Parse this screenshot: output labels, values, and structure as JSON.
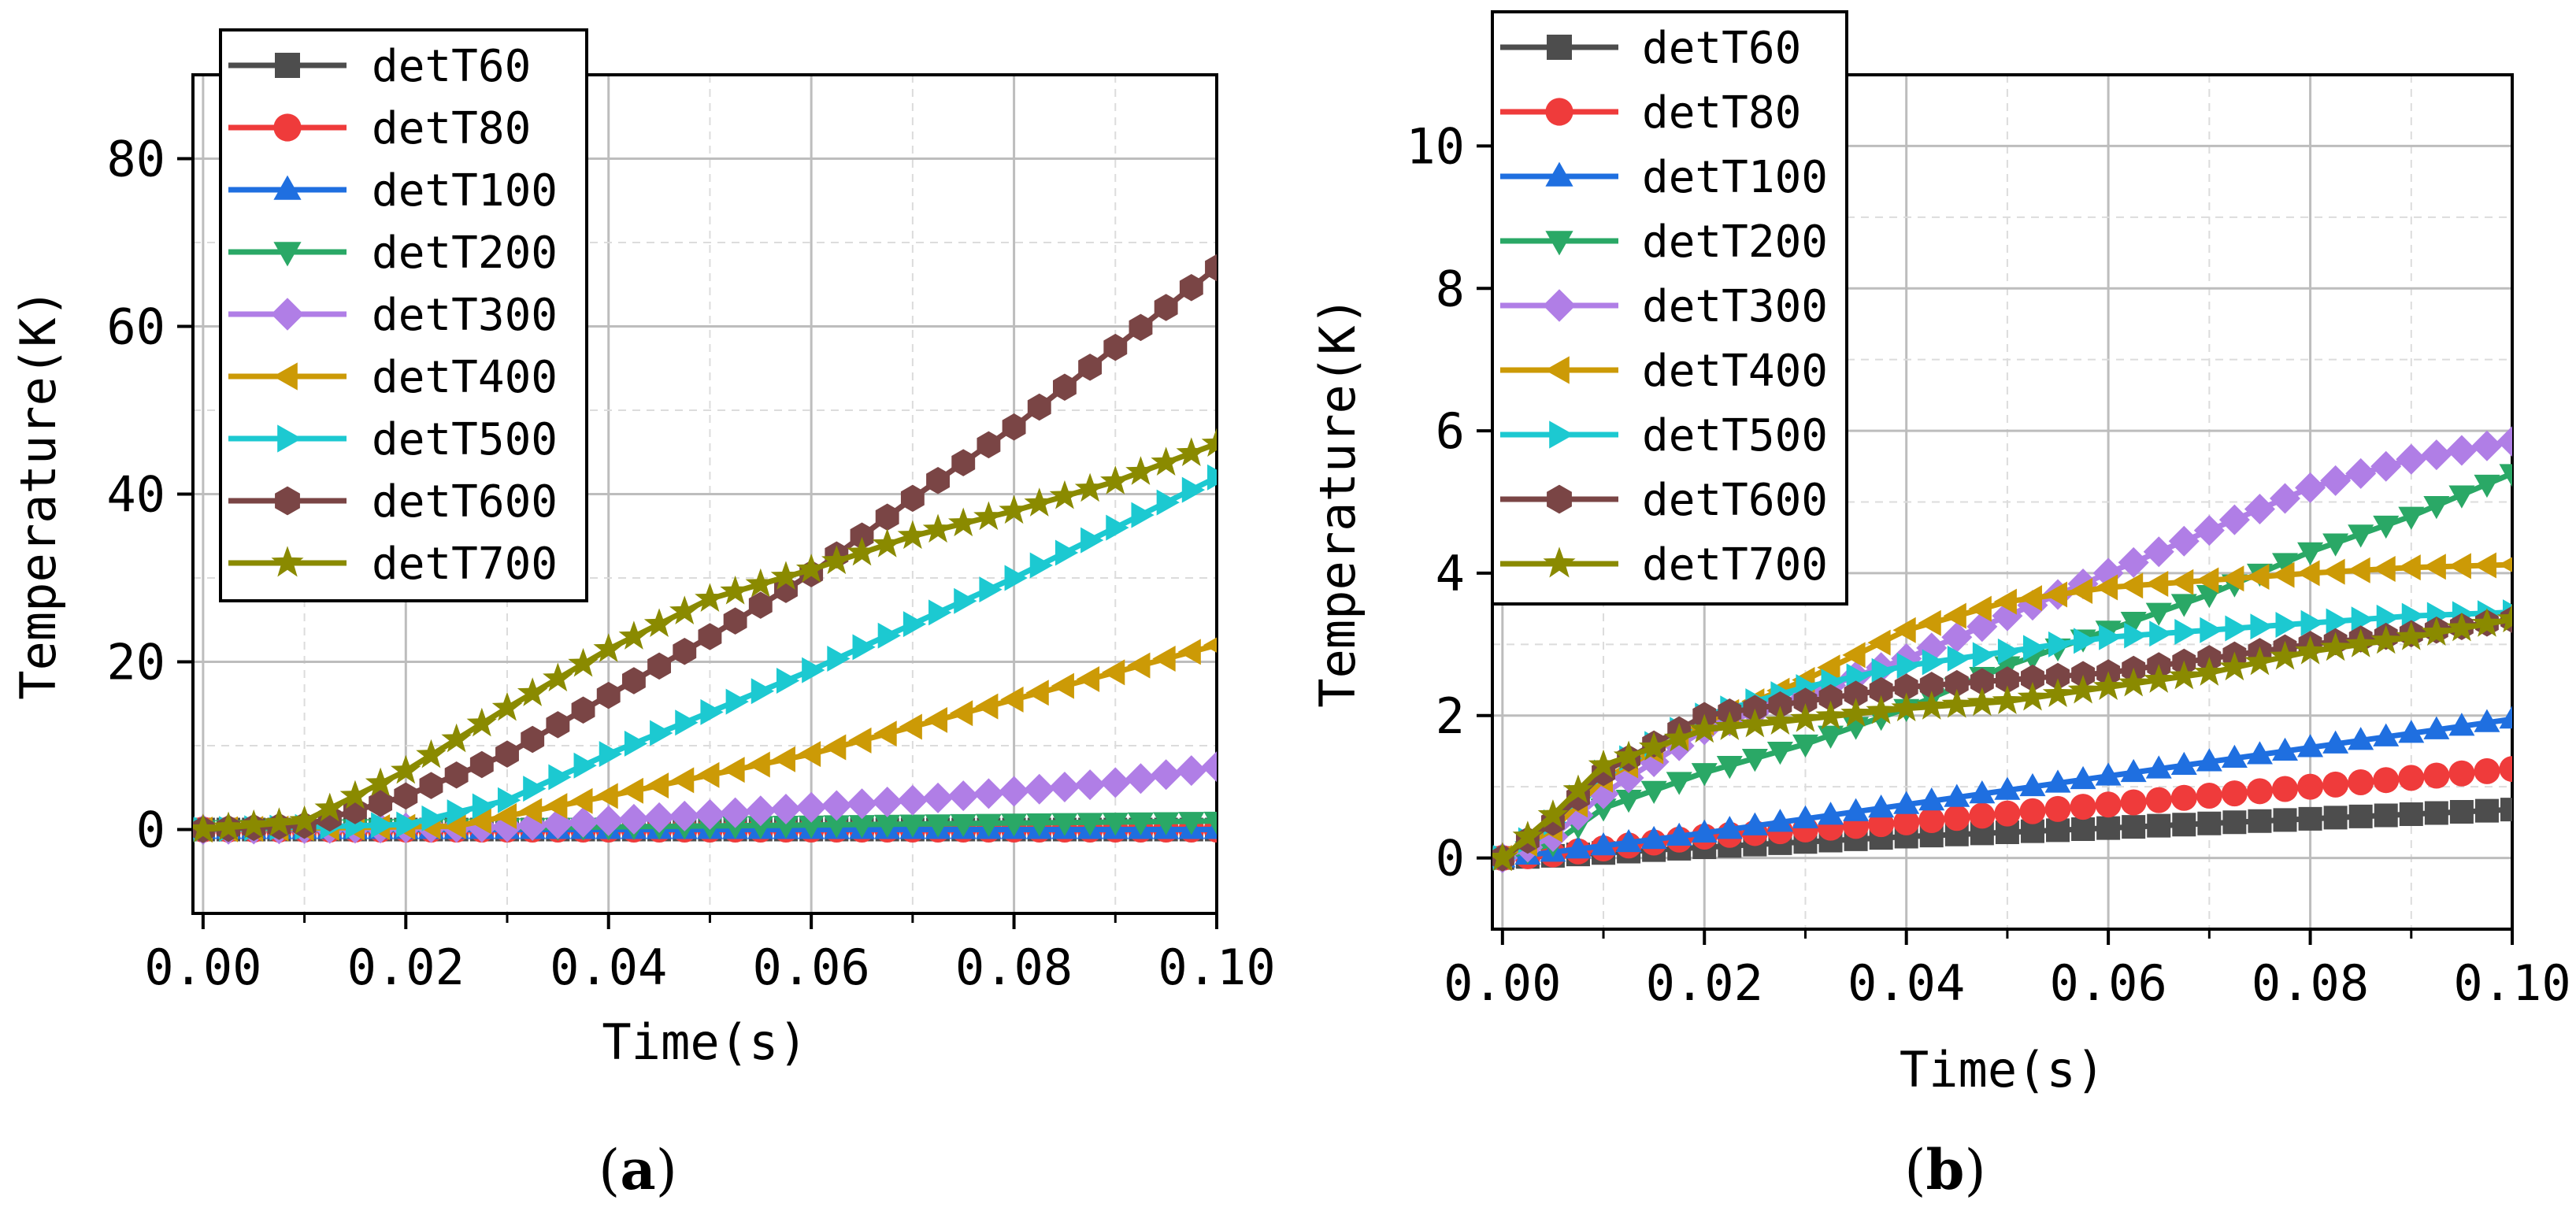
{
  "colors": {
    "detT60": "#4d4d4d",
    "detT80": "#ef3b3b",
    "detT100": "#1f6fe0",
    "detT200": "#2aa866",
    "detT300": "#b07ee6",
    "detT400": "#cc9a06",
    "detT500": "#1cc9d1",
    "detT600": "#7a4545",
    "detT700": "#8a8a00"
  },
  "chart_data": [
    {
      "type": "line",
      "panel_label": "(a)",
      "xlabel": "Time(s)",
      "ylabel": "Temperature(K)",
      "xlim": [
        -0.001,
        0.1
      ],
      "ylim": [
        -10,
        90
      ],
      "xticks": [
        "0.00",
        "0.02",
        "0.04",
        "0.06",
        "0.08",
        "0.10"
      ],
      "yticks": [
        "0",
        "20",
        "40",
        "60",
        "80"
      ],
      "grid": true,
      "legend_position": "top-left",
      "series": [
        {
          "name": "detT60",
          "marker": "square",
          "x": [
            0.0,
            0.1
          ],
          "y": [
            0.0,
            0.0
          ]
        },
        {
          "name": "detT80",
          "marker": "circle",
          "x": [
            0.0,
            0.1
          ],
          "y": [
            0.0,
            0.0
          ]
        },
        {
          "name": "detT100",
          "marker": "triangle-up",
          "x": [
            0.0,
            0.1
          ],
          "y": [
            0.0,
            0.0
          ]
        },
        {
          "name": "detT200",
          "marker": "triangle-down",
          "x": [
            0.0,
            0.03,
            0.1
          ],
          "y": [
            0.0,
            0.2,
            1.0
          ]
        },
        {
          "name": "detT300",
          "marker": "diamond",
          "x": [
            0.0,
            0.03,
            0.05,
            0.07,
            0.09,
            0.1
          ],
          "y": [
            0.0,
            0.3,
            1.8,
            3.5,
            5.6,
            7.5
          ]
        },
        {
          "name": "detT400",
          "marker": "triangle-left",
          "x": [
            0.0,
            0.025,
            0.04,
            0.06,
            0.08,
            0.1
          ],
          "y": [
            0.0,
            0.4,
            4.0,
            9.0,
            15.5,
            22.0
          ]
        },
        {
          "name": "detT500",
          "marker": "triangle-right",
          "x": [
            0.0,
            0.02,
            0.03,
            0.04,
            0.05,
            0.06,
            0.07,
            0.08,
            0.09,
            0.1
          ],
          "y": [
            0.0,
            0.6,
            3.5,
            9.0,
            14.0,
            19.0,
            24.5,
            30.0,
            36.0,
            42.0
          ]
        },
        {
          "name": "detT600",
          "marker": "hexagon",
          "x": [
            0.0,
            0.01,
            0.02,
            0.03,
            0.04,
            0.05,
            0.06,
            0.07,
            0.08,
            0.09,
            0.1
          ],
          "y": [
            0.0,
            0.5,
            4.0,
            9.0,
            16.0,
            23.0,
            30.5,
            39.5,
            48.0,
            57.5,
            67.0
          ]
        },
        {
          "name": "detT700",
          "marker": "star",
          "x": [
            0.0,
            0.01,
            0.02,
            0.03,
            0.04,
            0.05,
            0.06,
            0.07,
            0.08,
            0.09,
            0.1
          ],
          "y": [
            0.0,
            1.0,
            7.0,
            14.5,
            21.5,
            27.5,
            31.0,
            35.0,
            38.0,
            41.5,
            46.0
          ]
        }
      ]
    },
    {
      "type": "line",
      "panel_label": "(b)",
      "xlabel": "Time(s)",
      "ylabel": "Temperature(K)",
      "xlim": [
        -0.001,
        0.1
      ],
      "ylim": [
        -1,
        11
      ],
      "xticks": [
        "0.00",
        "0.02",
        "0.04",
        "0.06",
        "0.08",
        "0.10"
      ],
      "yticks": [
        "0",
        "2",
        "4",
        "6",
        "8",
        "10"
      ],
      "grid": true,
      "legend_position": "top-left",
      "series": [
        {
          "name": "detT60",
          "marker": "square",
          "x": [
            0.0,
            0.005,
            0.02,
            0.04,
            0.06,
            0.08,
            0.1
          ],
          "y": [
            0.0,
            0.03,
            0.15,
            0.3,
            0.42,
            0.55,
            0.68
          ]
        },
        {
          "name": "detT80",
          "marker": "circle",
          "x": [
            0.0,
            0.005,
            0.02,
            0.04,
            0.06,
            0.08,
            0.1
          ],
          "y": [
            0.0,
            0.05,
            0.3,
            0.5,
            0.75,
            1.0,
            1.25
          ]
        },
        {
          "name": "detT100",
          "marker": "triangle-up",
          "x": [
            0.0,
            0.005,
            0.02,
            0.04,
            0.06,
            0.08,
            0.1
          ],
          "y": [
            0.0,
            0.08,
            0.35,
            0.75,
            1.15,
            1.55,
            1.95
          ]
        },
        {
          "name": "detT200",
          "marker": "triangle-down",
          "x": [
            0.0,
            0.005,
            0.01,
            0.02,
            0.03,
            0.04,
            0.05,
            0.06,
            0.07,
            0.08,
            0.09,
            0.1
          ],
          "y": [
            0.0,
            0.2,
            0.7,
            1.2,
            1.6,
            2.1,
            2.7,
            3.2,
            3.7,
            4.3,
            4.8,
            5.4
          ]
        },
        {
          "name": "detT300",
          "marker": "diamond",
          "x": [
            0.0,
            0.005,
            0.01,
            0.02,
            0.03,
            0.04,
            0.05,
            0.06,
            0.07,
            0.08,
            0.09,
            0.1
          ],
          "y": [
            0.0,
            0.3,
            0.9,
            1.8,
            2.3,
            2.8,
            3.4,
            4.0,
            4.6,
            5.2,
            5.6,
            5.85
          ]
        },
        {
          "name": "detT400",
          "marker": "triangle-left",
          "x": [
            0.0,
            0.005,
            0.01,
            0.02,
            0.03,
            0.04,
            0.05,
            0.06,
            0.07,
            0.08,
            0.09,
            0.1
          ],
          "y": [
            0.0,
            0.4,
            1.1,
            1.9,
            2.5,
            3.2,
            3.6,
            3.8,
            3.9,
            4.0,
            4.08,
            4.12
          ]
        },
        {
          "name": "detT500",
          "marker": "triangle-right",
          "x": [
            0.0,
            0.005,
            0.01,
            0.02,
            0.03,
            0.04,
            0.05,
            0.06,
            0.07,
            0.08,
            0.09,
            0.1
          ],
          "y": [
            0.0,
            0.5,
            1.2,
            2.0,
            2.4,
            2.7,
            2.9,
            3.1,
            3.2,
            3.3,
            3.4,
            3.45
          ]
        },
        {
          "name": "detT600",
          "marker": "hexagon",
          "x": [
            0.0,
            0.005,
            0.01,
            0.02,
            0.03,
            0.04,
            0.05,
            0.06,
            0.07,
            0.08,
            0.09,
            0.1
          ],
          "y": [
            0.0,
            0.5,
            1.2,
            2.0,
            2.2,
            2.4,
            2.5,
            2.6,
            2.8,
            3.0,
            3.15,
            3.35
          ]
        },
        {
          "name": "detT700",
          "marker": "star",
          "x": [
            0.0,
            0.005,
            0.01,
            0.02,
            0.03,
            0.04,
            0.05,
            0.06,
            0.07,
            0.08,
            0.09,
            0.1
          ],
          "y": [
            0.0,
            0.6,
            1.3,
            1.8,
            1.95,
            2.1,
            2.2,
            2.4,
            2.6,
            2.9,
            3.1,
            3.35
          ]
        }
      ]
    }
  ]
}
